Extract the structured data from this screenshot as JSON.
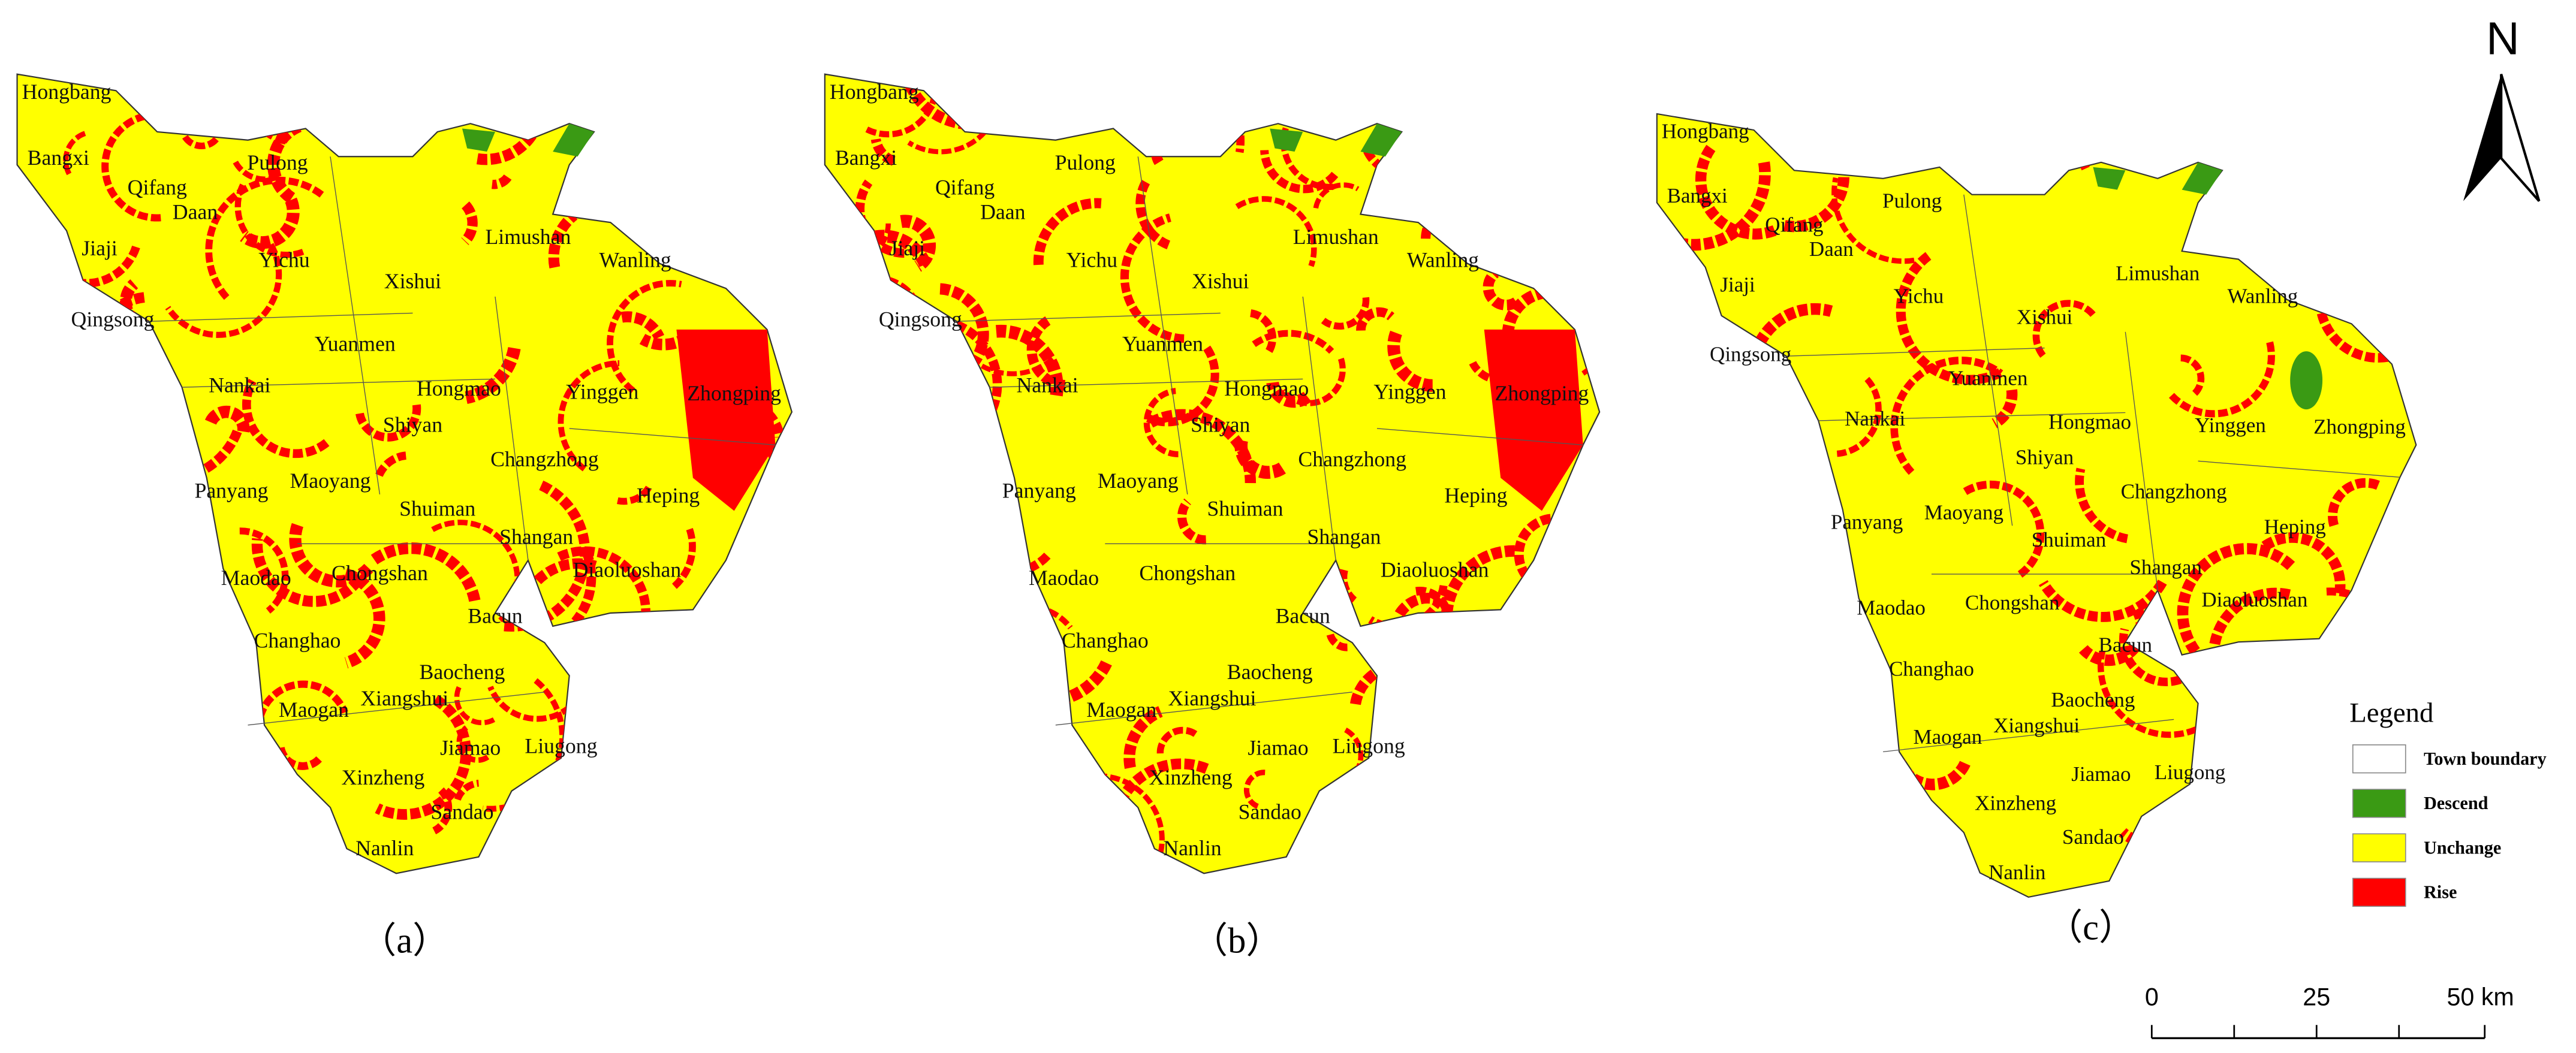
{
  "panels": [
    {
      "label": "（a）"
    },
    {
      "label": "（b）"
    },
    {
      "label": "（c）"
    }
  ],
  "towns": [
    "Hongbang",
    "Bangxi",
    "Pulong",
    "Qifang",
    "Daan",
    "Jiaji",
    "Yichu",
    "Xishui",
    "Limushan",
    "Wanling",
    "Qingsong",
    "Yuanmen",
    "Nankai",
    "Hongmao",
    "Yinggen",
    "Zhongping",
    "Shiyan",
    "Changzhong",
    "Panyang",
    "Maoyang",
    "Heping",
    "Shuiman",
    "Shangan",
    "Diaoluoshan",
    "Maodao",
    "Chongshan",
    "Bacun",
    "Changhao",
    "Baocheng",
    "Xiangshui",
    "Maogan",
    "Jiamao",
    "Liugong",
    "Xinzheng",
    "Sandao",
    "Nanlin"
  ],
  "north": "N",
  "legend": {
    "title": "Legend",
    "items": [
      {
        "label": "Town boundary",
        "color": "#ffffff"
      },
      {
        "label": "Descend",
        "color": "#3a9a14"
      },
      {
        "label": "Unchange",
        "color": "#ffff00"
      },
      {
        "label": "Rise",
        "color": "#ff0000"
      }
    ]
  },
  "scale_bar": {
    "labels": [
      "0",
      "25",
      "50 km"
    ]
  }
}
